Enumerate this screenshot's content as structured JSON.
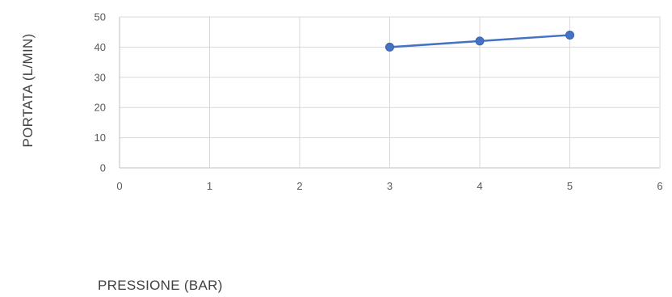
{
  "chart_data": {
    "type": "scatter",
    "title": "",
    "xlabel": "PRESSIONE (BAR)",
    "ylabel": "PORTATA (L/MIN)",
    "xlim": [
      0,
      6
    ],
    "ylim": [
      0,
      50
    ],
    "x_ticks": [
      "0",
      "1",
      "2",
      "3",
      "4",
      "5",
      "6"
    ],
    "y_ticks": [
      "0",
      "10",
      "20",
      "30",
      "40",
      "50"
    ],
    "grid": true,
    "legend": "none",
    "series": [
      {
        "x": [
          3,
          4,
          5
        ],
        "y": [
          40,
          42,
          44
        ],
        "color": "#4472C4",
        "markers": true,
        "connected": true
      }
    ]
  }
}
